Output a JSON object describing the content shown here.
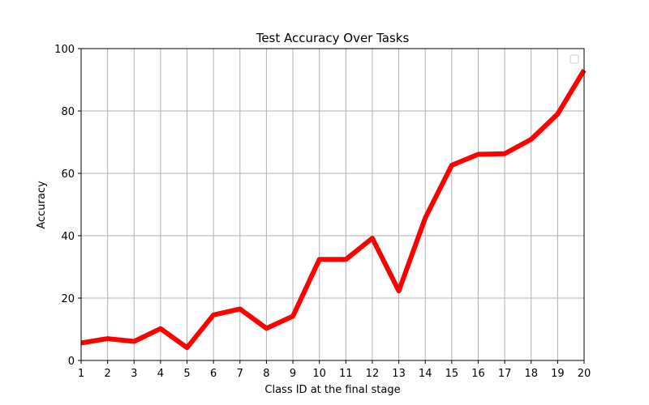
{
  "chart_data": {
    "type": "line",
    "title": "Test Accuracy Over Tasks",
    "xlabel": "Class ID at the final stage",
    "ylabel": "Accuracy",
    "xlim": [
      1,
      20
    ],
    "ylim": [
      0,
      100
    ],
    "x_ticks": [
      1,
      2,
      3,
      4,
      5,
      6,
      7,
      8,
      9,
      10,
      11,
      12,
      13,
      14,
      15,
      16,
      17,
      18,
      19,
      20
    ],
    "y_ticks": [
      0,
      20,
      40,
      60,
      80,
      100
    ],
    "grid": true,
    "legend": {
      "placement": "top-right",
      "entries": []
    },
    "series": [
      {
        "color": "#ff0000",
        "x": [
          1,
          2,
          3,
          4,
          5,
          6,
          7,
          8,
          9,
          10,
          11,
          12,
          13,
          14,
          15,
          16,
          17,
          18,
          19,
          20
        ],
        "values": [
          5.6,
          7.0,
          6.1,
          10.2,
          4.1,
          14.6,
          16.5,
          10.3,
          14.2,
          32.4,
          32.4,
          39.2,
          22.3,
          45.7,
          62.6,
          66.1,
          66.3,
          70.9,
          79.0,
          93.1
        ]
      }
    ]
  }
}
